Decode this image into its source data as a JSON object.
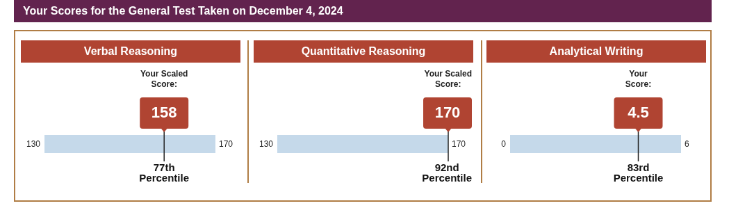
{
  "chart_data": [
    {
      "type": "other",
      "title": "Your Scores for the General Test Taken on December 4, 2024"
    },
    {
      "type": "other",
      "title": "Verbal Reasoning",
      "subtitle": "Your Scaled Score:",
      "values": [
        158
      ],
      "data_labels": true,
      "annotations": [
        "130",
        "170",
        "77th Percentile"
      ]
    },
    {
      "type": "other",
      "title": "Quantitative Reasoning",
      "subtitle": "Your Scaled Score:",
      "values": [
        170
      ],
      "data_labels": true,
      "annotations": [
        "130",
        "170",
        "92nd Percentile"
      ]
    },
    {
      "type": "other",
      "title": "Analytical Writing",
      "subtitle": "Your Score:",
      "values": [
        4.5
      ],
      "data_labels": true,
      "annotations": [
        "0",
        "6",
        "83rd Percentile"
      ]
    }
  ]
}
